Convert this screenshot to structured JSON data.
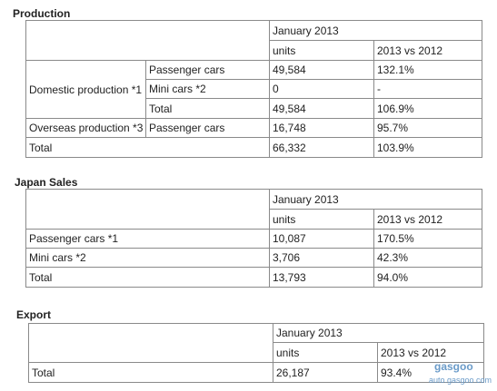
{
  "production": {
    "title": "Production",
    "header": {
      "period": "January 2013",
      "units": "units",
      "comparison": "2013 vs 2012"
    },
    "rows": [
      {
        "group": "Domestic production *1",
        "label": "Passenger cars",
        "units": "49,584",
        "comparison": "132.1%"
      },
      {
        "label": "Mini cars *2",
        "units": "0",
        "comparison": "-"
      },
      {
        "label": "Total",
        "units": "49,584",
        "comparison": "106.9%"
      },
      {
        "group": "Overseas production *3",
        "label": "Passenger cars",
        "units": "16,748",
        "comparison": "95.7%"
      },
      {
        "label": "Total",
        "units": "66,332",
        "comparison": "103.9%"
      }
    ]
  },
  "japan_sales": {
    "title": "Japan Sales",
    "header": {
      "period": "January 2013",
      "units": "units",
      "comparison": "2013 vs 2012"
    },
    "rows": [
      {
        "label": "Passenger cars *1",
        "units": "10,087",
        "comparison": "170.5%"
      },
      {
        "label": "Mini cars *2",
        "units": "3,706",
        "comparison": "42.3%"
      },
      {
        "label": "Total",
        "units": "13,793",
        "comparison": "94.0%"
      }
    ]
  },
  "export": {
    "title": "Export",
    "header": {
      "period": "January 2013",
      "units": "units",
      "comparison": "2013 vs 2012"
    },
    "rows": [
      {
        "label": "Total",
        "units": "26,187",
        "comparison": "93.4%"
      }
    ]
  },
  "watermark": {
    "brand": "gasgoo",
    "site": "auto.gasgoo.com"
  }
}
